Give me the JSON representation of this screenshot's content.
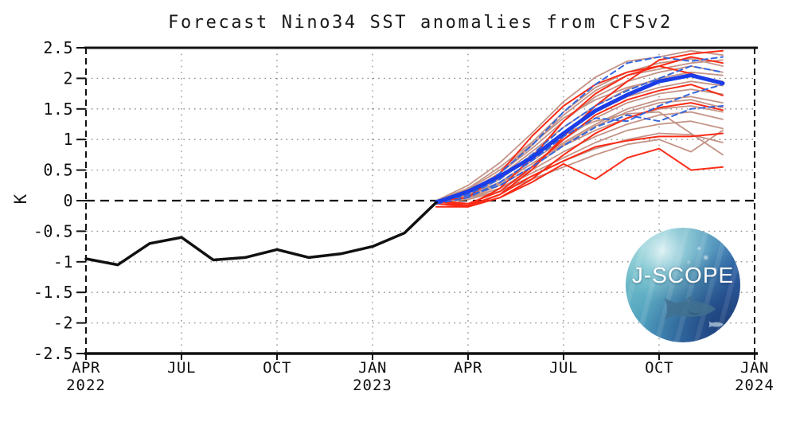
{
  "title": "Forecast Nino34 SST anomalies from CFSv2",
  "logo": {
    "text": "J-SCOPE"
  },
  "chart_data": {
    "type": "line",
    "title": "Forecast Nino34 SST anomalies from CFSv2",
    "xlabel": "",
    "ylabel": "K",
    "ylim": [
      -2.5,
      2.5
    ],
    "grid": {
      "on": true,
      "color": "#8a8a8a"
    },
    "legend": "none",
    "timeline": [
      "APR 2022",
      "MAY 2022",
      "JUN 2022",
      "JUL 2022",
      "AUG 2022",
      "SEP 2022",
      "OCT 2022",
      "NOV 2022",
      "DEC 2022",
      "JAN 2023",
      "FEB 2023",
      "MAR 2023",
      "APR 2023",
      "MAY 2023",
      "JUN 2023",
      "JUL 2023",
      "AUG 2023",
      "SEP 2023",
      "OCT 2023",
      "NOV 2023",
      "DEC 2023",
      "JAN 2024"
    ],
    "y_axis": {
      "ticks": [
        {
          "v": 2.5,
          "label": "2.5"
        },
        {
          "v": 2,
          "label": "2"
        },
        {
          "v": 1.5,
          "label": "1.5"
        },
        {
          "v": 1,
          "label": "1"
        },
        {
          "v": 0.5,
          "label": "0.5"
        },
        {
          "v": 0,
          "label": "0"
        },
        {
          "v": -0.5,
          "label": "-0.5"
        },
        {
          "v": -1,
          "label": "-1"
        },
        {
          "v": -1.5,
          "label": "-1.5"
        },
        {
          "v": -2,
          "label": "-2"
        },
        {
          "v": -2.5,
          "label": "-2.5"
        }
      ]
    },
    "x_axis": {
      "ticks": [
        {
          "index": 0,
          "label": "APR",
          "year": "2022"
        },
        {
          "index": 3,
          "label": "JUL"
        },
        {
          "index": 6,
          "label": "OCT"
        },
        {
          "index": 9,
          "label": "JAN",
          "year": "2023"
        },
        {
          "index": 12,
          "label": "APR"
        },
        {
          "index": 15,
          "label": "JUL"
        },
        {
          "index": 18,
          "label": "OCT"
        },
        {
          "index": 21,
          "label": "JAN",
          "year": "2024"
        }
      ]
    },
    "series": [
      {
        "name": "member-01",
        "group": "early-init",
        "color": "#c49488",
        "width": 1.8,
        "dash": null,
        "start_index": 11,
        "values": [
          0.0,
          0.25,
          0.62,
          1.1,
          1.62,
          2.02,
          2.28,
          2.35,
          2.45,
          2.38
        ]
      },
      {
        "name": "member-02",
        "group": "early-init",
        "color": "#c49488",
        "width": 1.8,
        "dash": null,
        "start_index": 11,
        "values": [
          0.0,
          0.2,
          0.55,
          0.95,
          1.45,
          1.85,
          2.1,
          2.25,
          2.32,
          2.2
        ]
      },
      {
        "name": "member-03",
        "group": "early-init",
        "color": "#c49488",
        "width": 1.8,
        "dash": null,
        "start_index": 11,
        "values": [
          -0.05,
          0.15,
          0.45,
          0.85,
          1.3,
          1.7,
          1.95,
          2.1,
          2.2,
          2.1
        ]
      },
      {
        "name": "member-04",
        "group": "early-init",
        "color": "#c49488",
        "width": 1.8,
        "dash": null,
        "start_index": 11,
        "values": [
          0.0,
          0.1,
          0.4,
          0.8,
          1.2,
          1.55,
          1.82,
          2.0,
          2.1,
          2.05
        ]
      },
      {
        "name": "member-05",
        "group": "early-init",
        "color": "#c49488",
        "width": 1.8,
        "dash": null,
        "start_index": 11,
        "values": [
          0.0,
          0.12,
          0.35,
          0.72,
          1.1,
          1.45,
          1.7,
          1.85,
          1.95,
          1.88
        ]
      },
      {
        "name": "member-06",
        "group": "early-init",
        "color": "#c49488",
        "width": 1.8,
        "dash": null,
        "start_index": 11,
        "values": [
          -0.05,
          0.08,
          0.3,
          0.65,
          1.0,
          1.35,
          1.6,
          1.75,
          1.82,
          1.74
        ]
      },
      {
        "name": "member-07",
        "group": "early-init",
        "color": "#c49488",
        "width": 1.8,
        "dash": null,
        "start_index": 11,
        "values": [
          0.0,
          0.1,
          0.3,
          0.6,
          0.95,
          1.25,
          1.5,
          1.65,
          1.7,
          1.6
        ]
      },
      {
        "name": "member-08",
        "group": "early-init",
        "color": "#c49488",
        "width": 1.8,
        "dash": null,
        "start_index": 11,
        "values": [
          0.0,
          0.05,
          0.25,
          0.55,
          0.9,
          1.15,
          1.35,
          1.5,
          1.55,
          1.45
        ]
      },
      {
        "name": "member-09",
        "group": "early-init",
        "color": "#c49488",
        "width": 1.8,
        "dash": null,
        "start_index": 11,
        "values": [
          -0.05,
          0.05,
          0.2,
          0.5,
          0.8,
          1.05,
          1.25,
          1.4,
          1.45,
          1.33
        ]
      },
      {
        "name": "member-10",
        "group": "early-init",
        "color": "#c49488",
        "width": 1.8,
        "dash": null,
        "start_index": 11,
        "values": [
          0.0,
          0.05,
          0.2,
          0.45,
          0.7,
          0.95,
          1.15,
          1.25,
          1.3,
          1.18
        ]
      },
      {
        "name": "member-11",
        "group": "early-init",
        "color": "#c49488",
        "width": 1.8,
        "dash": null,
        "start_index": 11,
        "values": [
          0.0,
          0.05,
          0.15,
          0.4,
          0.65,
          0.85,
          1.0,
          1.1,
          1.08,
          0.95
        ]
      },
      {
        "name": "member-12",
        "group": "early-init",
        "color": "#c49488",
        "width": 1.8,
        "dash": null,
        "start_index": 11,
        "values": [
          -0.03,
          0.02,
          0.15,
          0.35,
          0.55,
          0.75,
          0.92,
          1.0,
          0.8,
          1.15
        ]
      },
      {
        "name": "member-13",
        "group": "early-init",
        "color": "#c49488",
        "width": 1.8,
        "dash": null,
        "start_index": 11,
        "values": [
          0.0,
          0.1,
          0.35,
          0.75,
          1.1,
          1.3,
          1.42,
          1.45,
          1.1,
          0.75
        ]
      },
      {
        "name": "member-14",
        "group": "early-init",
        "color": "#c49488",
        "width": 1.8,
        "dash": null,
        "start_index": 11,
        "values": [
          0.0,
          0.18,
          0.5,
          0.92,
          1.35,
          1.65,
          1.85,
          1.98,
          2.05,
          1.95
        ]
      },
      {
        "name": "member-15",
        "group": "early-init",
        "color": "#c49488",
        "width": 1.8,
        "dash": null,
        "start_index": 11,
        "values": [
          0.0,
          0.15,
          0.45,
          0.9,
          1.4,
          1.8,
          2.05,
          2.15,
          2.25,
          2.3
        ]
      },
      {
        "name": "member-16",
        "group": "early-init",
        "color": "#c49488",
        "width": 1.8,
        "dash": null,
        "start_index": 11,
        "values": [
          0.0,
          0.08,
          0.28,
          0.6,
          0.92,
          1.22,
          1.45,
          1.6,
          1.65,
          1.52
        ]
      },
      {
        "name": "member-17",
        "group": "recent-init",
        "color": "#fa2b16",
        "width": 2,
        "dash": null,
        "start_index": 11,
        "values": [
          0.0,
          -0.1,
          0.1,
          0.5,
          1.05,
          1.55,
          1.95,
          2.3,
          2.4,
          2.45
        ]
      },
      {
        "name": "member-18",
        "group": "recent-init",
        "color": "#fa2b16",
        "width": 2,
        "dash": null,
        "start_index": 11,
        "values": [
          -0.05,
          -0.08,
          0.2,
          0.7,
          1.3,
          1.75,
          2.05,
          2.2,
          2.35,
          2.25
        ]
      },
      {
        "name": "member-19",
        "group": "recent-init",
        "color": "#fa2b16",
        "width": 2,
        "dash": null,
        "start_index": 11,
        "values": [
          0.0,
          0.05,
          0.45,
          1.05,
          1.55,
          1.9,
          2.1,
          2.2,
          2.08,
          1.9
        ]
      },
      {
        "name": "member-20",
        "group": "recent-init",
        "color": "#fa2b16",
        "width": 2,
        "dash": null,
        "start_index": 11,
        "values": [
          0.0,
          -0.05,
          0.15,
          0.55,
          1.0,
          1.4,
          1.65,
          1.8,
          1.9,
          1.72
        ]
      },
      {
        "name": "member-21",
        "group": "recent-init",
        "color": "#fa2b16",
        "width": 2,
        "dash": null,
        "start_index": 11,
        "values": [
          -0.1,
          -0.1,
          0.05,
          0.35,
          0.75,
          1.1,
          1.35,
          1.52,
          1.6,
          1.48
        ]
      },
      {
        "name": "member-22",
        "group": "recent-init",
        "color": "#fa2b16",
        "width": 2,
        "dash": null,
        "start_index": 11,
        "values": [
          0.0,
          -0.08,
          0.1,
          0.4,
          0.65,
          0.88,
          0.98,
          1.05,
          1.05,
          1.1
        ]
      },
      {
        "name": "member-23",
        "group": "recent-init",
        "color": "#fa2b16",
        "width": 2,
        "dash": null,
        "start_index": 11,
        "values": [
          -0.05,
          -0.1,
          0.05,
          0.3,
          0.6,
          0.35,
          0.7,
          0.85,
          0.5,
          0.55
        ]
      },
      {
        "name": "member-24",
        "group": "latest-init",
        "color": "#3566dd",
        "width": 2,
        "dash": "7 5",
        "start_index": 11,
        "values": [
          0.0,
          0.1,
          0.45,
          0.9,
          1.45,
          1.9,
          2.25,
          2.35,
          2.28,
          2.35
        ]
      },
      {
        "name": "member-25",
        "group": "latest-init",
        "color": "#3566dd",
        "width": 2,
        "dash": "7 5",
        "start_index": 11,
        "values": [
          0.0,
          0.1,
          0.35,
          0.75,
          1.2,
          1.55,
          1.8,
          2.0,
          2.2,
          2.1
        ]
      },
      {
        "name": "member-26",
        "group": "latest-init",
        "color": "#3566dd",
        "width": 2,
        "dash": "7 5",
        "start_index": 11,
        "values": [
          -0.05,
          0.05,
          0.3,
          0.65,
          1.05,
          1.35,
          1.3,
          1.55,
          1.75,
          1.9
        ]
      },
      {
        "name": "member-27",
        "group": "latest-init",
        "color": "#3566dd",
        "width": 2,
        "dash": "7 5",
        "start_index": 11,
        "values": [
          0.0,
          0.08,
          0.25,
          0.55,
          0.9,
          1.2,
          1.4,
          1.3,
          1.5,
          1.55
        ]
      },
      {
        "name": "ensemble-mean",
        "group": "mean",
        "color": "#1b3de8",
        "width": 5,
        "dash": null,
        "start_index": 11,
        "values": [
          -0.03,
          0.15,
          0.4,
          0.7,
          1.1,
          1.47,
          1.73,
          1.95,
          2.05,
          1.92
        ]
      },
      {
        "name": "observed",
        "group": "observed",
        "color": "#111111",
        "width": 3.5,
        "dash": null,
        "start_index": 0,
        "values": [
          -0.95,
          -1.05,
          -0.7,
          -0.6,
          -0.97,
          -0.93,
          -0.8,
          -0.93,
          -0.87,
          -0.75,
          -0.53,
          -0.03
        ]
      }
    ]
  }
}
